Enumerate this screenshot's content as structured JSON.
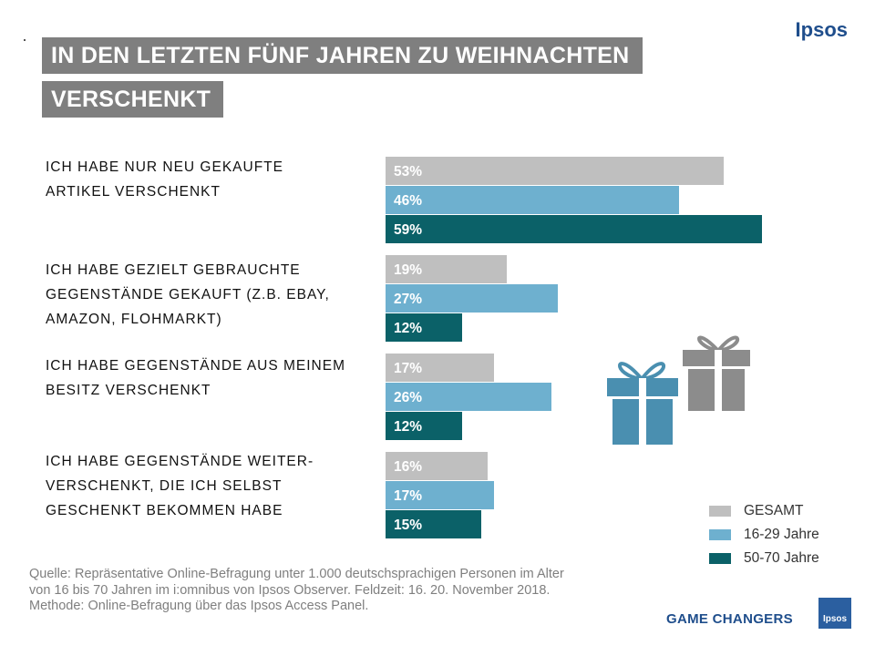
{
  "title_line1": "IN DEN LETZTEN  FÜNF JAHREN ZU WEIHNACHTEN",
  "title_line2": "VERSCHENKT",
  "brand_top": "Ipsos",
  "brand_bottom": "Ipsos",
  "footer_tagline": "GAME CHANGERS",
  "source_text": "Quelle: Repräsentative Online-Befragung unter 1.000 deutschsprachigen Personen im Alter von 16 bis 70 Jahren im i:omnibus von Ipsos Observer. Feldzeit: 16. 20. November 2018. Methode: Online-Befragung über das Ipsos Access Panel.",
  "colors": {
    "gesamt": "#bfbfbf",
    "jung": "#6eb0cf",
    "alt": "#0b6168",
    "title_bg": "#7f7f7f",
    "gift_blue": "#4a8fb0",
    "gift_gray": "#8c8c8c"
  },
  "icons": [
    "gift-blue-icon",
    "gift-gray-icon"
  ],
  "chart_data": {
    "type": "bar",
    "orientation": "horizontal",
    "categories": [
      [
        "ICH HABE NUR NEU GEKAUFTE",
        "ARTIKEL VERSCHENKT"
      ],
      [
        "ICH HABE GEZIELT GEBRAUCHTE",
        "GEGENSTÄNDE GEKAUFT (Z.B. EBAY,",
        "AMAZON, FLOHMARKT)"
      ],
      [
        "ICH HABE GEGENSTÄNDE AUS MEINEM",
        "BESITZ VERSCHENKT"
      ],
      [
        "ICH HABE GEGENSTÄNDE WEITER-",
        "VERSCHENKT, DIE ICH SELBST",
        "GESCHENKT BEKOMMEN HABE"
      ]
    ],
    "series": [
      {
        "name": "GESAMT",
        "values": [
          53,
          19,
          17,
          16
        ],
        "labels": [
          "53%",
          "19%",
          "17%",
          "16%"
        ],
        "color": "#bfbfbf"
      },
      {
        "name": "16-29 Jahre",
        "values": [
          46,
          27,
          26,
          17
        ],
        "labels": [
          "46%",
          "27%",
          "26%",
          "17%"
        ],
        "color": "#6eb0cf"
      },
      {
        "name": "50-70 Jahre",
        "values": [
          59,
          12,
          12,
          15
        ],
        "labels": [
          "59%",
          "12%",
          "12%",
          "15%"
        ],
        "color": "#0b6168"
      }
    ],
    "xlim": [
      0,
      100
    ],
    "legend_position": "bottom-right",
    "grid": false
  }
}
